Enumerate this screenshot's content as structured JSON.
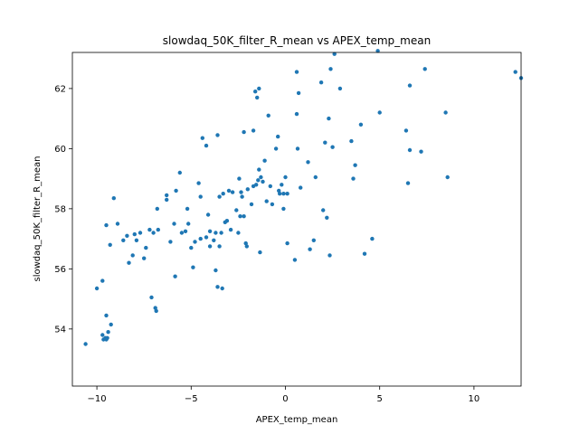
{
  "chart_data": {
    "type": "scatter",
    "title": "slowdaq_50K_filter_R_mean vs APEX_temp_mean",
    "xlabel": "APEX_temp_mean",
    "ylabel": "slowdaq_50K_filter_R_mean",
    "xlim": [
      -11.3,
      12.5
    ],
    "ylim": [
      52.1,
      63.2
    ],
    "xticks": [
      -10,
      -5,
      0,
      5,
      10
    ],
    "yticks": [
      54,
      56,
      58,
      60,
      62
    ],
    "grid": false,
    "legend": "none",
    "marker_color": "#1f77b4",
    "points": [
      [
        -10.6,
        53.5
      ],
      [
        -10.0,
        55.35
      ],
      [
        -9.7,
        55.6
      ],
      [
        -9.7,
        53.8
      ],
      [
        -9.65,
        53.65
      ],
      [
        -9.55,
        53.7
      ],
      [
        -9.5,
        53.65
      ],
      [
        -9.45,
        53.7
      ],
      [
        -9.4,
        53.9
      ],
      [
        -9.5,
        54.45
      ],
      [
        -9.25,
        54.15
      ],
      [
        -9.5,
        57.45
      ],
      [
        -9.3,
        56.8
      ],
      [
        -9.1,
        58.35
      ],
      [
        -8.9,
        57.5
      ],
      [
        -8.6,
        56.95
      ],
      [
        -8.4,
        57.1
      ],
      [
        -8.3,
        56.2
      ],
      [
        -8.1,
        56.45
      ],
      [
        -8.0,
        57.15
      ],
      [
        -7.9,
        56.95
      ],
      [
        -7.7,
        57.2
      ],
      [
        -7.5,
        56.35
      ],
      [
        -7.4,
        56.7
      ],
      [
        -7.2,
        57.3
      ],
      [
        -7.1,
        55.05
      ],
      [
        -7.0,
        57.2
      ],
      [
        -6.9,
        54.7
      ],
      [
        -6.85,
        54.6
      ],
      [
        -6.8,
        58.0
      ],
      [
        -6.75,
        57.3
      ],
      [
        -6.3,
        58.3
      ],
      [
        -6.3,
        58.45
      ],
      [
        -6.1,
        56.9
      ],
      [
        -5.9,
        57.5
      ],
      [
        -5.85,
        55.75
      ],
      [
        -5.8,
        58.6
      ],
      [
        -5.6,
        59.2
      ],
      [
        -5.5,
        57.2
      ],
      [
        -5.3,
        57.25
      ],
      [
        -5.2,
        58.0
      ],
      [
        -5.15,
        57.5
      ],
      [
        -5.0,
        56.7
      ],
      [
        -4.9,
        56.05
      ],
      [
        -4.8,
        56.9
      ],
      [
        -4.6,
        58.85
      ],
      [
        -4.5,
        57.0
      ],
      [
        -4.5,
        58.4
      ],
      [
        -4.4,
        60.35
      ],
      [
        -4.2,
        60.1
      ],
      [
        -4.2,
        57.05
      ],
      [
        -4.1,
        57.8
      ],
      [
        -4.0,
        57.25
      ],
      [
        -4.0,
        56.75
      ],
      [
        -3.8,
        56.95
      ],
      [
        -3.7,
        55.95
      ],
      [
        -3.7,
        57.2
      ],
      [
        -3.6,
        55.4
      ],
      [
        -3.6,
        60.45
      ],
      [
        -3.5,
        56.75
      ],
      [
        -3.5,
        58.4
      ],
      [
        -3.4,
        57.2
      ],
      [
        -3.35,
        55.35
      ],
      [
        -3.3,
        58.5
      ],
      [
        -3.2,
        57.55
      ],
      [
        -3.1,
        57.6
      ],
      [
        -3.0,
        58.6
      ],
      [
        -2.9,
        57.3
      ],
      [
        -2.8,
        58.55
      ],
      [
        -2.6,
        57.95
      ],
      [
        -2.5,
        57.2
      ],
      [
        -2.45,
        59.0
      ],
      [
        -2.4,
        57.75
      ],
      [
        -2.35,
        58.55
      ],
      [
        -2.3,
        58.4
      ],
      [
        -2.2,
        60.55
      ],
      [
        -2.2,
        57.75
      ],
      [
        -2.1,
        56.85
      ],
      [
        -2.05,
        56.75
      ],
      [
        -2.0,
        58.65
      ],
      [
        -1.8,
        58.15
      ],
      [
        -1.7,
        60.6
      ],
      [
        -1.7,
        58.75
      ],
      [
        -1.6,
        61.9
      ],
      [
        -1.55,
        58.8
      ],
      [
        -1.5,
        61.7
      ],
      [
        -1.45,
        58.95
      ],
      [
        -1.4,
        62.0
      ],
      [
        -1.4,
        59.3
      ],
      [
        -1.35,
        56.55
      ],
      [
        -1.3,
        59.05
      ],
      [
        -1.2,
        58.9
      ],
      [
        -1.1,
        59.6
      ],
      [
        -1.0,
        58.25
      ],
      [
        -0.9,
        61.1
      ],
      [
        -0.8,
        58.75
      ],
      [
        -0.7,
        58.15
      ],
      [
        -0.5,
        60.0
      ],
      [
        -0.4,
        60.4
      ],
      [
        -0.35,
        58.6
      ],
      [
        -0.3,
        58.5
      ],
      [
        -0.2,
        58.8
      ],
      [
        -0.1,
        58.0
      ],
      [
        -0.1,
        58.5
      ],
      [
        0.0,
        59.05
      ],
      [
        0.1,
        56.85
      ],
      [
        0.1,
        58.5
      ],
      [
        0.5,
        56.3
      ],
      [
        0.6,
        61.15
      ],
      [
        0.6,
        62.55
      ],
      [
        0.65,
        60.0
      ],
      [
        0.7,
        61.85
      ],
      [
        0.8,
        58.7
      ],
      [
        1.2,
        59.55
      ],
      [
        1.3,
        56.65
      ],
      [
        1.5,
        56.95
      ],
      [
        1.6,
        59.05
      ],
      [
        1.9,
        62.2
      ],
      [
        2.0,
        57.95
      ],
      [
        2.1,
        60.2
      ],
      [
        2.2,
        57.7
      ],
      [
        2.3,
        61.0
      ],
      [
        2.35,
        56.45
      ],
      [
        2.4,
        62.65
      ],
      [
        2.5,
        60.05
      ],
      [
        2.6,
        63.15
      ],
      [
        2.9,
        62.0
      ],
      [
        3.5,
        60.25
      ],
      [
        3.6,
        59.0
      ],
      [
        3.7,
        59.45
      ],
      [
        4.0,
        60.8
      ],
      [
        4.2,
        56.5
      ],
      [
        4.6,
        57.0
      ],
      [
        4.9,
        63.25
      ],
      [
        5.0,
        61.2
      ],
      [
        6.4,
        60.6
      ],
      [
        6.5,
        58.85
      ],
      [
        6.6,
        59.95
      ],
      [
        6.6,
        62.1
      ],
      [
        7.2,
        59.9
      ],
      [
        7.4,
        62.65
      ],
      [
        8.5,
        61.2
      ],
      [
        8.6,
        59.05
      ],
      [
        12.2,
        62.55
      ],
      [
        12.5,
        62.35
      ]
    ]
  }
}
